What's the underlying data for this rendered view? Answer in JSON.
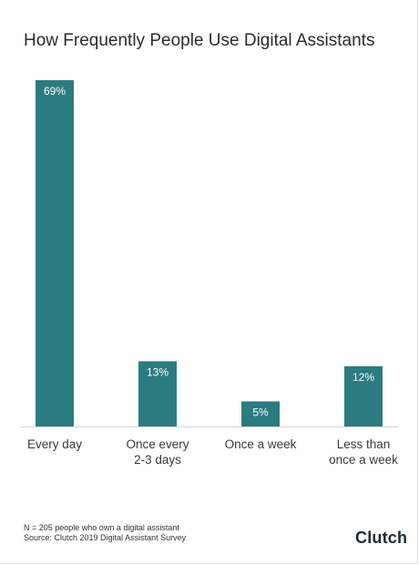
{
  "chart_data": {
    "type": "bar",
    "title": "How Frequently People Use Digital Assistants",
    "categories": [
      [
        "Every day"
      ],
      [
        "Once every",
        "2-3 days"
      ],
      [
        "Once a week"
      ],
      [
        "Less than",
        "once a week"
      ]
    ],
    "values": [
      69,
      13,
      5,
      12
    ],
    "value_labels": [
      "69%",
      "13%",
      "5%",
      "12%"
    ],
    "ylim": [
      0,
      69
    ],
    "grid": false,
    "bar_color": "#2b7b80",
    "label_color": "#ffffff"
  },
  "footer": {
    "note_line1": "N = 205 people who own a digital assistant",
    "note_line2": "Source: Clutch 2019 Digital Assistant Survey",
    "brand": "Clutch"
  }
}
